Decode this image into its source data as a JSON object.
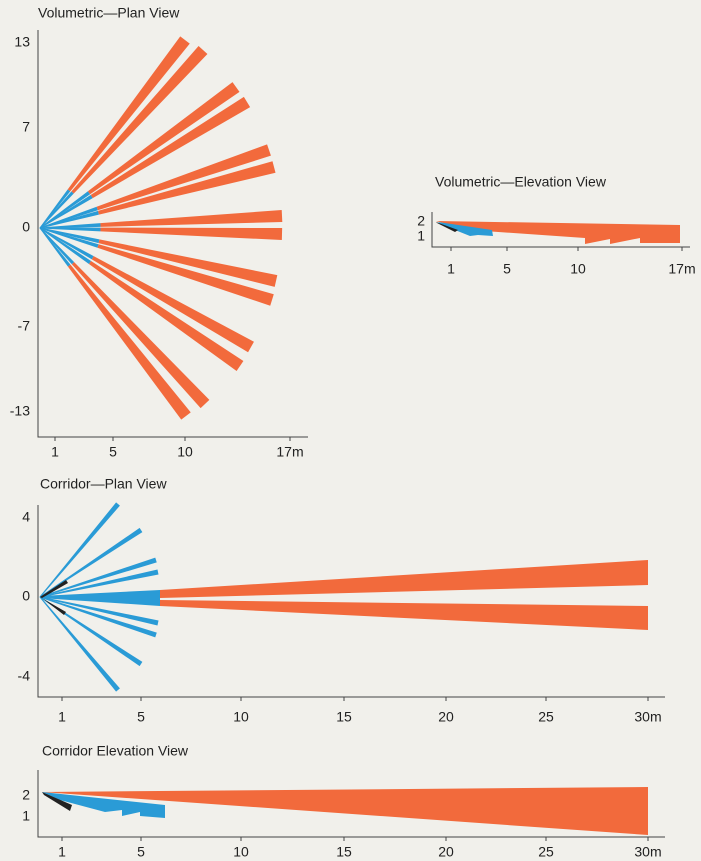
{
  "panels": [
    {
      "title": "Volumetric—Plan View",
      "x_tick_labels": [
        "1",
        "5",
        "10",
        "17m"
      ],
      "y_tick_labels": [
        "13",
        "7",
        "0",
        "-7",
        "-13"
      ]
    },
    {
      "title": "Volumetric—Elevation View",
      "x_tick_labels": [
        "1",
        "5",
        "10",
        "17m"
      ],
      "y_tick_labels": [
        "2",
        "1"
      ]
    },
    {
      "title": "Corridor—Plan View",
      "x_tick_labels": [
        "1",
        "5",
        "10",
        "15",
        "20",
        "25",
        "30m"
      ],
      "y_tick_labels": [
        "4",
        "0",
        "-4"
      ]
    },
    {
      "title": "Corridor Elevation View",
      "x_tick_labels": [
        "1",
        "5",
        "10",
        "15",
        "20",
        "25",
        "30m"
      ],
      "y_tick_labels": [
        "2",
        "1"
      ]
    }
  ]
}
